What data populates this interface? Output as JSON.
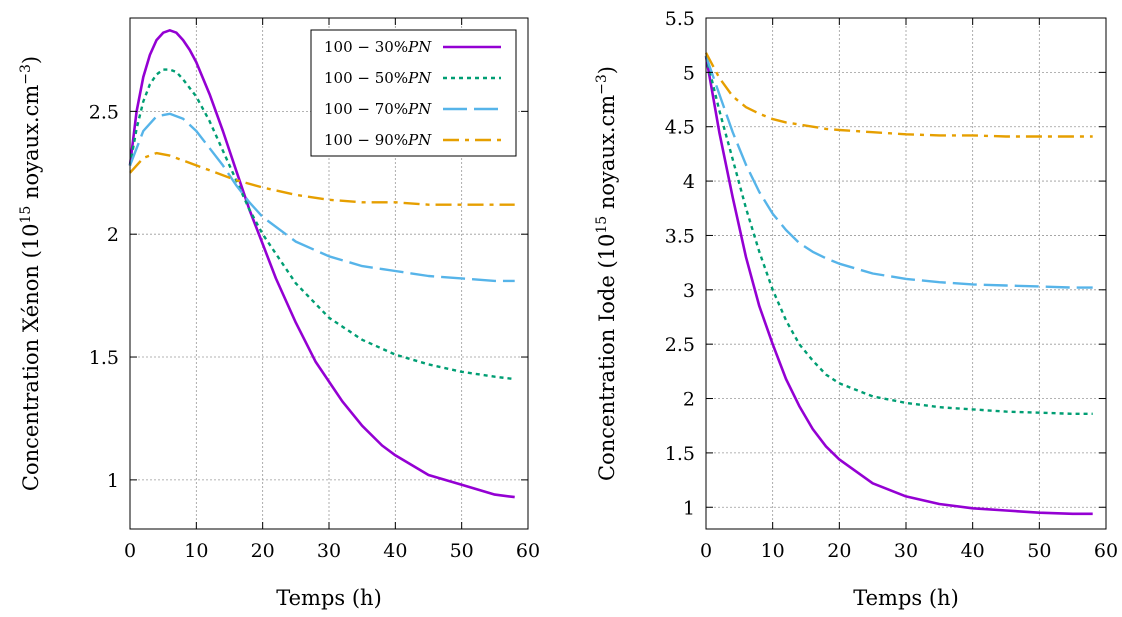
{
  "chart_data": [
    {
      "type": "line",
      "xlabel": "Temps (h)",
      "ylabel": "Concentration Xénon (10^15 noyaux.cm^-3)",
      "ylabel_main": "Concentration Xénon (10",
      "ylabel_exp": "15",
      "ylabel_unit": " noyaux.cm",
      "ylabel_unit_exp": "−3",
      "ylabel_close": ")",
      "xlim": [
        0,
        60
      ],
      "ylim": [
        0.8,
        2.88
      ],
      "xticks": [
        0,
        10,
        20,
        30,
        40,
        50,
        60
      ],
      "yticks": [
        1,
        1.5,
        2,
        2.5
      ],
      "ytick_labels": [
        "1",
        "1.5",
        "2",
        "2.5"
      ],
      "grid": true,
      "legend_position": "top-right",
      "series": [
        {
          "name": "100 − 30%PN",
          "name_prefix": "100 − 30%",
          "name_suffix": "PN",
          "color": "#9400d3",
          "dash": "solid",
          "x": [
            0,
            1,
            2,
            3,
            4,
            5,
            6,
            7,
            8,
            9,
            10,
            12,
            14,
            16,
            18,
            20,
            22,
            25,
            28,
            30,
            32,
            35,
            38,
            40,
            45,
            50,
            55,
            58
          ],
          "y": [
            2.28,
            2.5,
            2.64,
            2.73,
            2.79,
            2.82,
            2.83,
            2.82,
            2.79,
            2.75,
            2.7,
            2.57,
            2.42,
            2.26,
            2.1,
            1.96,
            1.82,
            1.64,
            1.48,
            1.4,
            1.32,
            1.22,
            1.14,
            1.1,
            1.02,
            0.98,
            0.94,
            0.93
          ]
        },
        {
          "name": "100 − 50%PN",
          "name_prefix": "100 − 50%",
          "name_suffix": "PN",
          "color": "#009e73",
          "dash": "dotted",
          "x": [
            0,
            1,
            2,
            3,
            4,
            5,
            6,
            7,
            8,
            10,
            12,
            14,
            16,
            18,
            20,
            25,
            30,
            35,
            40,
            45,
            50,
            55,
            58
          ],
          "y": [
            2.28,
            2.43,
            2.54,
            2.61,
            2.65,
            2.67,
            2.67,
            2.66,
            2.63,
            2.56,
            2.46,
            2.34,
            2.22,
            2.1,
            2.0,
            1.8,
            1.66,
            1.57,
            1.51,
            1.47,
            1.44,
            1.42,
            1.41
          ]
        },
        {
          "name": "100 − 70%PN",
          "name_prefix": "100 − 70%",
          "name_suffix": "PN",
          "color": "#56b4e9",
          "dash": "dash",
          "x": [
            0,
            2,
            4,
            6,
            8,
            10,
            12,
            14,
            16,
            18,
            20,
            25,
            30,
            35,
            40,
            45,
            50,
            55,
            58
          ],
          "y": [
            2.28,
            2.42,
            2.48,
            2.49,
            2.47,
            2.42,
            2.35,
            2.28,
            2.2,
            2.13,
            2.07,
            1.97,
            1.91,
            1.87,
            1.85,
            1.83,
            1.82,
            1.81,
            1.81
          ]
        },
        {
          "name": "100 − 90%PN",
          "name_prefix": "100 − 90%",
          "name_suffix": "PN",
          "color": "#e69f00",
          "dash": "dashdot",
          "x": [
            0,
            2,
            4,
            6,
            8,
            10,
            12,
            14,
            16,
            20,
            25,
            30,
            35,
            40,
            45,
            50,
            55,
            58
          ],
          "y": [
            2.25,
            2.31,
            2.33,
            2.32,
            2.3,
            2.28,
            2.26,
            2.24,
            2.22,
            2.19,
            2.16,
            2.14,
            2.13,
            2.13,
            2.12,
            2.12,
            2.12,
            2.12
          ]
        }
      ]
    },
    {
      "type": "line",
      "xlabel": "Temps (h)",
      "ylabel": "Concentration Iode (10^15 noyaux.cm^-3)",
      "ylabel_main": "Concentration Iode (10",
      "ylabel_exp": "15",
      "ylabel_unit": " noyaux.cm",
      "ylabel_unit_exp": "−3",
      "ylabel_close": ")",
      "xlim": [
        0,
        60
      ],
      "ylim": [
        0.8,
        5.5
      ],
      "xticks": [
        0,
        10,
        20,
        30,
        40,
        50,
        60
      ],
      "yticks": [
        1,
        1.5,
        2,
        2.5,
        3,
        3.5,
        4,
        4.5,
        5,
        5.5
      ],
      "ytick_labels": [
        "1",
        "1.5",
        "2",
        "2.5",
        "3",
        "3.5",
        "4",
        "4.5",
        "5",
        "5.5"
      ],
      "grid": true,
      "legend_position": "none",
      "series": [
        {
          "name": "",
          "color": "#9400d3",
          "dash": "solid",
          "x": [
            0,
            2,
            4,
            6,
            8,
            10,
            12,
            14,
            16,
            18,
            20,
            25,
            30,
            35,
            40,
            45,
            50,
            55,
            58
          ],
          "y": [
            5.15,
            4.45,
            3.85,
            3.3,
            2.85,
            2.5,
            2.18,
            1.93,
            1.72,
            1.56,
            1.44,
            1.22,
            1.1,
            1.03,
            0.99,
            0.97,
            0.95,
            0.94,
            0.94
          ]
        },
        {
          "name": "",
          "color": "#009e73",
          "dash": "dotted",
          "x": [
            0,
            2,
            4,
            6,
            8,
            10,
            12,
            14,
            16,
            18,
            20,
            25,
            30,
            35,
            40,
            45,
            50,
            55,
            58
          ],
          "y": [
            5.15,
            4.65,
            4.2,
            3.75,
            3.35,
            3.0,
            2.72,
            2.5,
            2.35,
            2.22,
            2.14,
            2.02,
            1.96,
            1.92,
            1.9,
            1.88,
            1.87,
            1.86,
            1.86
          ]
        },
        {
          "name": "",
          "color": "#56b4e9",
          "dash": "dash",
          "x": [
            0,
            2,
            4,
            6,
            8,
            10,
            12,
            14,
            16,
            18,
            20,
            25,
            30,
            35,
            40,
            45,
            50,
            55,
            58
          ],
          "y": [
            5.15,
            4.8,
            4.45,
            4.15,
            3.9,
            3.7,
            3.55,
            3.43,
            3.35,
            3.29,
            3.24,
            3.15,
            3.1,
            3.07,
            3.05,
            3.04,
            3.03,
            3.02,
            3.02
          ]
        },
        {
          "name": "",
          "color": "#e69f00",
          "dash": "dashdot",
          "x": [
            0,
            2,
            4,
            6,
            8,
            10,
            12,
            14,
            16,
            18,
            20,
            25,
            30,
            35,
            40,
            45,
            50,
            55,
            58
          ],
          "y": [
            5.18,
            4.95,
            4.78,
            4.68,
            4.62,
            4.57,
            4.54,
            4.52,
            4.5,
            4.48,
            4.47,
            4.45,
            4.43,
            4.42,
            4.42,
            4.41,
            4.41,
            4.41,
            4.41
          ]
        }
      ]
    }
  ]
}
